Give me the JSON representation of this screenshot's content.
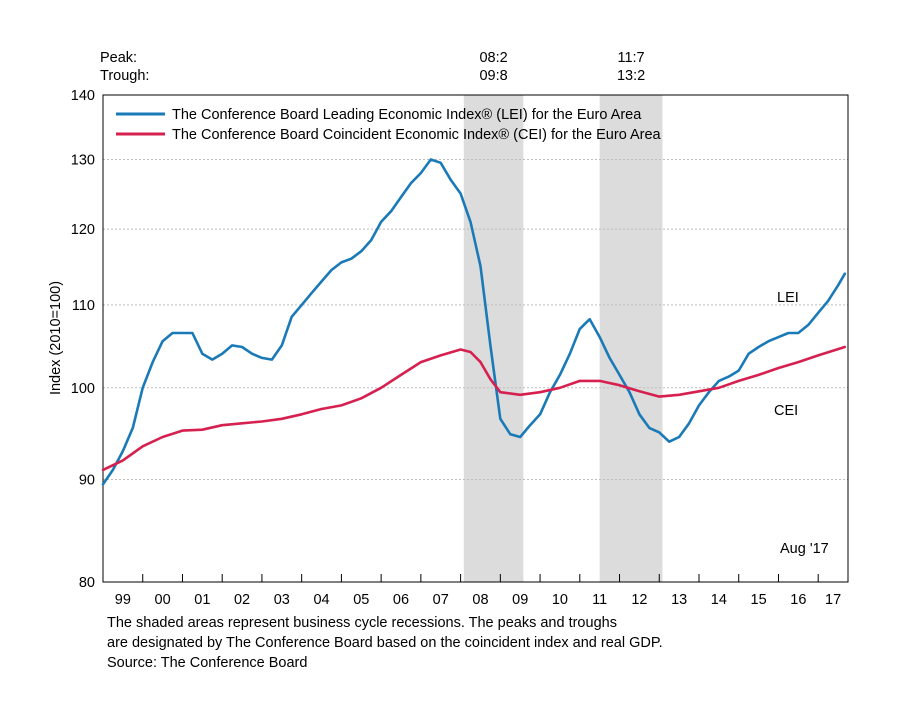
{
  "chart_data": {
    "type": "line",
    "ylabel": "Index (2010=100)",
    "yscale": "log",
    "ylim": [
      80,
      140
    ],
    "xlim": [
      1999.0,
      2017.75
    ],
    "y_ticks": [
      80,
      90,
      100,
      110,
      120,
      130,
      140
    ],
    "x_tick_labels": [
      {
        "label": "99",
        "year": 1999
      },
      {
        "label": "00",
        "year": 2000
      },
      {
        "label": "01",
        "year": 2001
      },
      {
        "label": "02",
        "year": 2002
      },
      {
        "label": "03",
        "year": 2003
      },
      {
        "label": "04",
        "year": 2004
      },
      {
        "label": "05",
        "year": 2005
      },
      {
        "label": "06",
        "year": 2006
      },
      {
        "label": "07",
        "year": 2007
      },
      {
        "label": "08",
        "year": 2008
      },
      {
        "label": "09",
        "year": 2009
      },
      {
        "label": "10",
        "year": 2010
      },
      {
        "label": "11",
        "year": 2011
      },
      {
        "label": "12",
        "year": 2012
      },
      {
        "label": "13",
        "year": 2013
      },
      {
        "label": "14",
        "year": 2014
      },
      {
        "label": "15",
        "year": 2015
      },
      {
        "label": "16",
        "year": 2016
      },
      {
        "label": "17",
        "year": 2017
      }
    ],
    "grid": "horizontal dashed",
    "legend_position": "top-left",
    "peak_label": "Peak:",
    "trough_label": "Trough:",
    "recessions": [
      {
        "peak": "08:2",
        "trough": "09:8",
        "start": 2008.08,
        "end": 2009.58
      },
      {
        "peak": "11:7",
        "trough": "13:2",
        "start": 2011.5,
        "end": 2013.08
      }
    ],
    "series": [
      {
        "name": "The Conference Board Leading Economic Index® (LEI) for the Euro Area",
        "label": "LEI",
        "color": "#1a7ab8",
        "points": [
          [
            1999.0,
            89.5
          ],
          [
            1999.25,
            91.0
          ],
          [
            1999.5,
            93.0
          ],
          [
            1999.75,
            95.5
          ],
          [
            2000.0,
            100.0
          ],
          [
            2000.25,
            103.0
          ],
          [
            2000.5,
            105.5
          ],
          [
            2000.75,
            106.5
          ],
          [
            2001.0,
            106.5
          ],
          [
            2001.25,
            106.5
          ],
          [
            2001.5,
            104.0
          ],
          [
            2001.75,
            103.3
          ],
          [
            2002.0,
            104.0
          ],
          [
            2002.25,
            105.0
          ],
          [
            2002.5,
            104.8
          ],
          [
            2002.75,
            104.0
          ],
          [
            2003.0,
            103.5
          ],
          [
            2003.25,
            103.3
          ],
          [
            2003.5,
            105.0
          ],
          [
            2003.75,
            108.5
          ],
          [
            2004.0,
            110.0
          ],
          [
            2004.25,
            111.5
          ],
          [
            2004.5,
            113.0
          ],
          [
            2004.75,
            114.5
          ],
          [
            2005.0,
            115.5
          ],
          [
            2005.25,
            116.0
          ],
          [
            2005.5,
            117.0
          ],
          [
            2005.75,
            118.5
          ],
          [
            2006.0,
            121.0
          ],
          [
            2006.25,
            122.5
          ],
          [
            2006.5,
            124.5
          ],
          [
            2006.75,
            126.5
          ],
          [
            2007.0,
            128.0
          ],
          [
            2007.25,
            130.0
          ],
          [
            2007.5,
            129.5
          ],
          [
            2007.75,
            127.0
          ],
          [
            2008.0,
            125.0
          ],
          [
            2008.25,
            121.0
          ],
          [
            2008.5,
            115.0
          ],
          [
            2008.75,
            105.0
          ],
          [
            2009.0,
            96.5
          ],
          [
            2009.25,
            94.8
          ],
          [
            2009.5,
            94.5
          ],
          [
            2009.75,
            95.8
          ],
          [
            2010.0,
            97.0
          ],
          [
            2010.25,
            99.5
          ],
          [
            2010.5,
            101.5
          ],
          [
            2010.75,
            104.0
          ],
          [
            2011.0,
            107.0
          ],
          [
            2011.25,
            108.2
          ],
          [
            2011.5,
            106.0
          ],
          [
            2011.75,
            103.5
          ],
          [
            2012.0,
            101.5
          ],
          [
            2012.25,
            99.5
          ],
          [
            2012.5,
            97.0
          ],
          [
            2012.75,
            95.5
          ],
          [
            2013.0,
            95.0
          ],
          [
            2013.25,
            94.0
          ],
          [
            2013.5,
            94.5
          ],
          [
            2013.75,
            96.0
          ],
          [
            2014.0,
            98.0
          ],
          [
            2014.25,
            99.5
          ],
          [
            2014.5,
            100.8
          ],
          [
            2014.75,
            101.3
          ],
          [
            2015.0,
            102.0
          ],
          [
            2015.25,
            104.0
          ],
          [
            2015.5,
            104.8
          ],
          [
            2015.75,
            105.5
          ],
          [
            2016.0,
            106.0
          ],
          [
            2016.25,
            106.5
          ],
          [
            2016.5,
            106.5
          ],
          [
            2016.75,
            107.5
          ],
          [
            2017.0,
            109.0
          ],
          [
            2017.25,
            110.5
          ],
          [
            2017.5,
            112.5
          ],
          [
            2017.67,
            114.0
          ]
        ]
      },
      {
        "name": "The Conference Board Coincident Economic Index® (CEI) for the Euro Area",
        "label": "CEI",
        "color": "#d6204f",
        "points": [
          [
            1999.0,
            91.0
          ],
          [
            1999.5,
            92.0
          ],
          [
            2000.0,
            93.5
          ],
          [
            2000.5,
            94.5
          ],
          [
            2001.0,
            95.2
          ],
          [
            2001.5,
            95.3
          ],
          [
            2002.0,
            95.8
          ],
          [
            2002.5,
            96.0
          ],
          [
            2003.0,
            96.2
          ],
          [
            2003.5,
            96.5
          ],
          [
            2004.0,
            97.0
          ],
          [
            2004.5,
            97.6
          ],
          [
            2005.0,
            98.0
          ],
          [
            2005.5,
            98.8
          ],
          [
            2006.0,
            100.0
          ],
          [
            2006.5,
            101.5
          ],
          [
            2007.0,
            103.0
          ],
          [
            2007.5,
            103.8
          ],
          [
            2008.0,
            104.5
          ],
          [
            2008.25,
            104.2
          ],
          [
            2008.5,
            103.0
          ],
          [
            2008.75,
            101.0
          ],
          [
            2009.0,
            99.5
          ],
          [
            2009.5,
            99.2
          ],
          [
            2010.0,
            99.5
          ],
          [
            2010.5,
            100.0
          ],
          [
            2011.0,
            100.8
          ],
          [
            2011.5,
            100.8
          ],
          [
            2012.0,
            100.3
          ],
          [
            2012.5,
            99.6
          ],
          [
            2013.0,
            99.0
          ],
          [
            2013.5,
            99.2
          ],
          [
            2014.0,
            99.6
          ],
          [
            2014.5,
            100.0
          ],
          [
            2015.0,
            100.8
          ],
          [
            2015.5,
            101.5
          ],
          [
            2016.0,
            102.3
          ],
          [
            2016.5,
            103.0
          ],
          [
            2017.0,
            103.8
          ],
          [
            2017.67,
            104.8
          ]
        ]
      }
    ],
    "annotations": {
      "lei_label": "LEI",
      "cei_label": "CEI",
      "date_label": "Aug '17"
    },
    "footnote_lines": [
      "The shaded areas represent business cycle recessions. The peaks and troughs",
      "are designated by The Conference Board based on the coincident index and real GDP.",
      "Source: The Conference Board"
    ]
  }
}
